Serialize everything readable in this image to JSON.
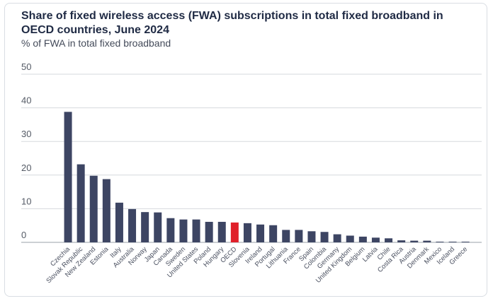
{
  "title": "Share of fixed wireless access (FWA) subscriptions in total fixed broadband in OECD countries, June 2024",
  "subtitle": "% of FWA in total fixed broadband",
  "colors": {
    "bar": "#3d4563",
    "highlight": "#e0202a",
    "grid": "#d6d9de"
  },
  "chart_data": {
    "type": "bar",
    "title": "Share of fixed wireless access (FWA) subscriptions in total fixed broadband in OECD countries, June 2024",
    "subtitle": "% of FWA in total fixed broadband",
    "xlabel": "",
    "ylabel": "",
    "ylim": [
      0,
      50
    ],
    "yticks": [
      0,
      10,
      20,
      30,
      40,
      50
    ],
    "grid": true,
    "highlight": "OECD",
    "categories": [
      "Czechia",
      "Slovak Republic",
      "New Zealand",
      "Estonia",
      "Italy",
      "Australia",
      "Norway",
      "Japan",
      "Canada",
      "Sweden",
      "United States",
      "Poland",
      "Hungary",
      "OECD",
      "Slovenia",
      "Ireland",
      "Portugal",
      "Lithuania",
      "France",
      "Spain",
      "Colombia",
      "Germany",
      "United Kingdom",
      "Belgium",
      "Latvia",
      "Chile",
      "Costa Rica",
      "Austria",
      "Denmark",
      "Mexico",
      "Iceland",
      "Greece"
    ],
    "values": [
      38.8,
      23.2,
      19.8,
      18.8,
      11.8,
      9.9,
      9.0,
      8.9,
      7.2,
      6.8,
      6.8,
      6.1,
      6.1,
      5.9,
      5.7,
      5.3,
      5.1,
      3.7,
      3.7,
      3.3,
      3.1,
      2.4,
      2.0,
      1.7,
      1.4,
      1.2,
      0.6,
      0.5,
      0.5,
      0.2,
      0.2,
      0.2
    ]
  }
}
